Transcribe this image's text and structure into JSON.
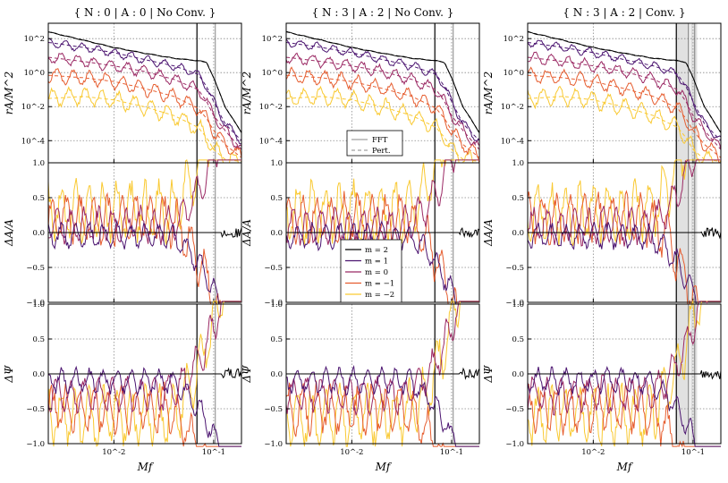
{
  "chart_data": {
    "type": "line",
    "x_scale": "log",
    "xlim": [
      0.0022,
      0.19
    ],
    "xticks": [
      {
        "value": 0.01,
        "label": "10^-2"
      },
      {
        "value": 0.1,
        "label": "10^-1"
      }
    ],
    "xlabel": "Mf",
    "row_ylabels": [
      "rA/M^2",
      "ΔA/A",
      "ΔΨ"
    ],
    "rows": [
      {
        "id": "amp",
        "y_scale": "log",
        "ylim": [
          5e-06,
          800
        ],
        "yticks": [
          {
            "value": 0.0001,
            "label": "10^-4"
          },
          {
            "value": 0.01,
            "label": "10^-2"
          },
          {
            "value": 1,
            "label": "10^0"
          },
          {
            "value": 100,
            "label": "10^2"
          }
        ]
      },
      {
        "id": "dA",
        "y_scale": "linear",
        "ylim": [
          -1.0,
          1.0
        ],
        "yticks": [
          {
            "value": -1.0,
            "label": "−1.0"
          },
          {
            "value": -0.5,
            "label": "−0.5"
          },
          {
            "value": 0.0,
            "label": "0.0"
          },
          {
            "value": 0.5,
            "label": "0.5"
          },
          {
            "value": 1.0,
            "label": "1.0"
          }
        ]
      },
      {
        "id": "dPsi",
        "y_scale": "linear",
        "ylim": [
          -1.0,
          1.0
        ],
        "yticks": [
          {
            "value": -1.0,
            "label": "−1.0"
          },
          {
            "value": -0.5,
            "label": "−0.5"
          },
          {
            "value": 0.0,
            "label": "0.0"
          },
          {
            "value": 0.5,
            "label": "0.5"
          },
          {
            "value": 1.0,
            "label": "1.0"
          }
        ]
      }
    ],
    "grid": true,
    "columns": [
      {
        "title": "{ N : 0 | A : 0 | No Conv. }",
        "vlines": [
          0.068,
          0.104
        ],
        "bands": []
      },
      {
        "title": "{ N : 3 | A : 2 | No Conv. }",
        "vlines": [
          0.068,
          0.104
        ],
        "bands": []
      },
      {
        "title": "{ N : 3 | A : 2 | Conv. }",
        "vlines": [
          0.068,
          0.09,
          0.104
        ],
        "bands": [
          [
            0.068,
            0.092
          ],
          [
            0.094,
            0.11
          ]
        ]
      }
    ],
    "series": [
      {
        "name": "m = 2",
        "color": "#000000",
        "amp_logf_points": [
          [
            0.0022,
            250
          ],
          [
            0.005,
            80
          ],
          [
            0.01,
            30
          ],
          [
            0.02,
            14
          ],
          [
            0.04,
            7
          ],
          [
            0.07,
            5
          ],
          [
            0.085,
            4
          ],
          [
            0.1,
            0.5
          ],
          [
            0.13,
            0.01
          ],
          [
            0.19,
            0.0003
          ]
        ],
        "dA_level": 0.0,
        "dPsi_level": 0.0
      },
      {
        "name": "m = 1",
        "color": "#4b1470",
        "amp_logf_points": [
          [
            0.0022,
            60
          ],
          [
            0.005,
            30
          ],
          [
            0.01,
            15
          ],
          [
            0.02,
            6
          ],
          [
            0.04,
            2.5
          ],
          [
            0.07,
            0.8
          ],
          [
            0.085,
            0.15
          ],
          [
            0.1,
            0.02
          ],
          [
            0.13,
            0.001
          ],
          [
            0.19,
            0.0001
          ]
        ],
        "dA_level": -0.05,
        "dPsi_level": -0.1
      },
      {
        "name": "m = 0",
        "color": "#9b2964",
        "amp_logf_points": [
          [
            0.0022,
            8
          ],
          [
            0.005,
            4.5
          ],
          [
            0.01,
            2.5
          ],
          [
            0.02,
            1.2
          ],
          [
            0.04,
            0.4
          ],
          [
            0.07,
            0.1
          ],
          [
            0.085,
            0.02
          ],
          [
            0.1,
            0.003
          ],
          [
            0.13,
            0.0004
          ],
          [
            0.19,
            3e-05
          ]
        ],
        "dA_level": 0.1,
        "dPsi_level": -0.3
      },
      {
        "name": "m = −1",
        "color": "#e65d2f",
        "amp_logf_points": [
          [
            0.0022,
            0.7
          ],
          [
            0.005,
            0.5
          ],
          [
            0.01,
            0.3
          ],
          [
            0.02,
            0.12
          ],
          [
            0.04,
            0.04
          ],
          [
            0.07,
            0.008
          ],
          [
            0.085,
            0.002
          ],
          [
            0.1,
            0.0004
          ],
          [
            0.13,
            6e-05
          ],
          [
            0.19,
            1e-05
          ]
        ],
        "dA_level": 0.2,
        "dPsi_level": -0.5
      },
      {
        "name": "m = −2",
        "color": "#f9c932",
        "amp_logf_points": [
          [
            0.0022,
            0.03
          ],
          [
            0.005,
            0.04
          ],
          [
            0.01,
            0.025
          ],
          [
            0.02,
            0.01
          ],
          [
            0.04,
            0.003
          ],
          [
            0.07,
            0.0006
          ],
          [
            0.085,
            0.00015
          ],
          [
            0.1,
            3e-05
          ],
          [
            0.13,
            8e-06
          ],
          [
            0.19,
            6e-06
          ]
        ],
        "dA_level": 0.3,
        "dPsi_level": -0.6
      }
    ],
    "line_styles": [
      {
        "label": "FFT",
        "dash": "solid"
      },
      {
        "label": "Pert.",
        "dash": "dashed"
      }
    ],
    "style_legend_labels": [
      "FFT",
      "Pert."
    ],
    "mode_legend_labels": [
      "m = 2",
      "m = 1",
      "m = 0",
      "m = −1",
      "m = −2"
    ]
  }
}
